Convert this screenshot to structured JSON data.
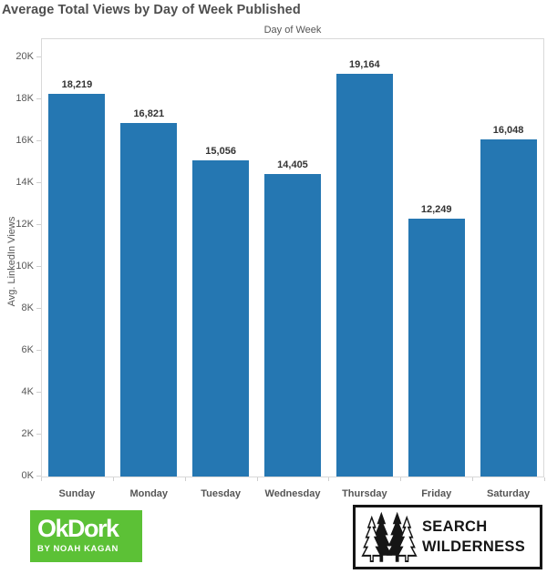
{
  "title": "Average Total Views by Day of Week Published",
  "chart_data": {
    "type": "bar",
    "title": "Average Total Views by Day of Week Published",
    "top_axis_label": "Day of Week",
    "xlabel": "Day of Week",
    "ylabel": "Avg. LinkedIn Views",
    "categories": [
      "Sunday",
      "Monday",
      "Tuesday",
      "Wednesday",
      "Thursday",
      "Friday",
      "Saturday"
    ],
    "values": [
      18219,
      16821,
      15056,
      14405,
      19164,
      12249,
      16048
    ],
    "value_labels": [
      "18,219",
      "16,821",
      "15,056",
      "14,405",
      "19,164",
      "12,249",
      "16,048"
    ],
    "ylim": [
      0,
      20000
    ],
    "ytick_step": 2000,
    "ytick_labels": [
      "0K",
      "2K",
      "4K",
      "6K",
      "8K",
      "10K",
      "12K",
      "14K",
      "16K",
      "18K",
      "20K"
    ],
    "grid": false,
    "legend": "none",
    "bar_color": "#2577b2"
  },
  "colors": {
    "bar": "#2577b2",
    "title_text": "#4e4e4e",
    "axis_text": "#565656",
    "axis_line": "#d9d9d9",
    "okdork_green": "#5cc136",
    "logo_black": "#151515"
  },
  "footer": {
    "okdork": {
      "name": "OkDork",
      "byline": "BY NOAH KAGAN"
    },
    "search_wilderness": {
      "line1": "SEARCH",
      "line2": "WILDERNESS",
      "icon": "pine-trees-icon"
    }
  }
}
